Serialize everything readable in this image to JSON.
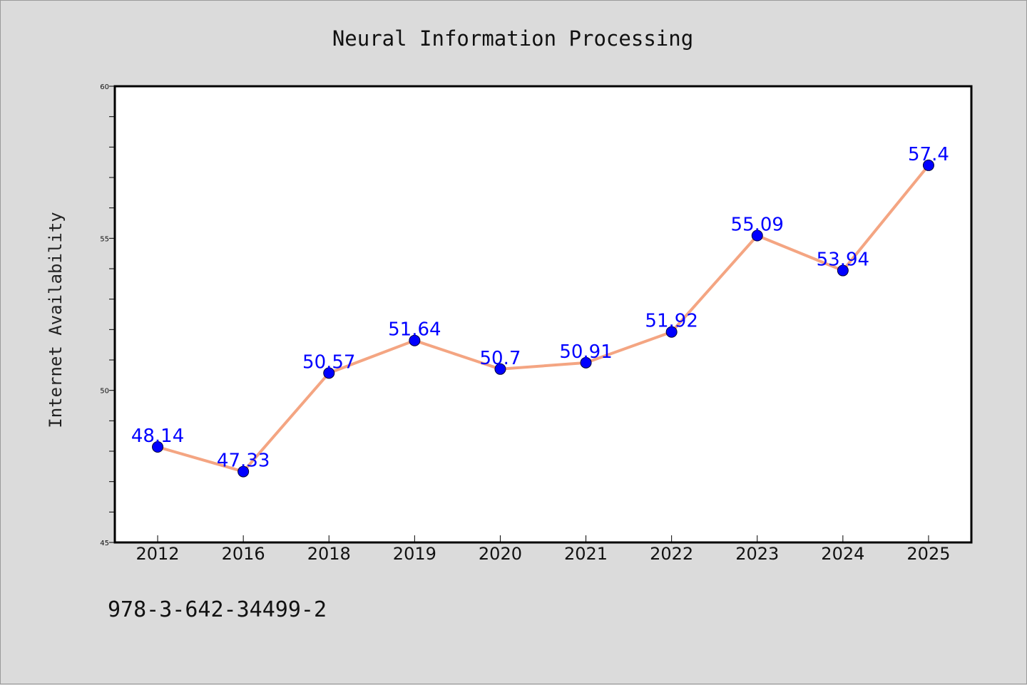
{
  "chart_data": {
    "type": "line",
    "title": "Neural Information Processing",
    "xlabel": "",
    "ylabel": "Internet Availability",
    "categories": [
      "2012",
      "2016",
      "2018",
      "2019",
      "2020",
      "2021",
      "2022",
      "2023",
      "2024",
      "2025"
    ],
    "series": [
      {
        "values": [
          48.14,
          47.33,
          50.57,
          51.64,
          50.7,
          50.91,
          51.92,
          55.09,
          53.94,
          57.4
        ],
        "labels": [
          "48.14",
          "47.33",
          "50.57",
          "51.64",
          "50.7",
          "50.91",
          "51.92",
          "55.09",
          "53.94",
          "57.4"
        ]
      }
    ],
    "ylim": [
      45,
      60
    ],
    "yticks": [
      "45",
      "50",
      "55",
      "60"
    ],
    "ytick_values": [
      45,
      50,
      55,
      60
    ],
    "minor_tick_step": 1,
    "grid": false,
    "line_color": "#f4a582",
    "marker_color": "#0000ff",
    "label_color": "#0000ff",
    "plot_background": "#ffffff",
    "page_background": "#dbdbdb"
  },
  "footer": {
    "isbn": "978-3-642-34499-2"
  }
}
